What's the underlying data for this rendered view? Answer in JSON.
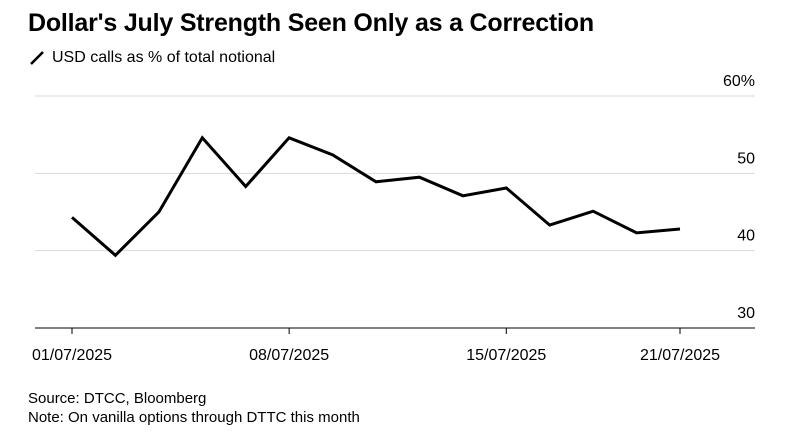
{
  "chart_data": {
    "type": "line",
    "title": "Dollar's July Strength Seen Only as a Correction",
    "legend": [
      "USD calls as % of total notional"
    ],
    "series": [
      {
        "name": "USD calls as % of total notional",
        "color": "#000000",
        "x": [
          "01/07/2025",
          "02/07/2025",
          "03/07/2025",
          "04/07/2025",
          "07/07/2025",
          "08/07/2025",
          "09/07/2025",
          "10/07/2025",
          "11/07/2025",
          "14/07/2025",
          "15/07/2025",
          "16/07/2025",
          "17/07/2025",
          "18/07/2025",
          "21/07/2025"
        ],
        "values": [
          44.3,
          39.4,
          45.0,
          54.6,
          48.3,
          54.6,
          52.4,
          48.9,
          49.5,
          47.1,
          48.1,
          43.3,
          45.1,
          42.3,
          42.8
        ]
      }
    ],
    "x_tick_labels": [
      "01/07/2025",
      "08/07/2025",
      "15/07/2025",
      "21/07/2025"
    ],
    "x_tick_indices": [
      0,
      5,
      10,
      14
    ],
    "y_ticks": [
      30,
      40,
      50,
      60
    ],
    "y_tick_labels": [
      "30",
      "40",
      "50",
      "60%"
    ],
    "ylim": [
      30,
      60
    ],
    "xlabel": "",
    "ylabel": "",
    "grid": true,
    "y_axis_position": "right"
  },
  "footer": {
    "source": "Source: DTCC, Bloomberg",
    "note": "Note: On vanilla options through DTTC this month"
  },
  "colors": {
    "line": "#000000",
    "grid": "#d9d9d9",
    "axis": "#000000"
  }
}
